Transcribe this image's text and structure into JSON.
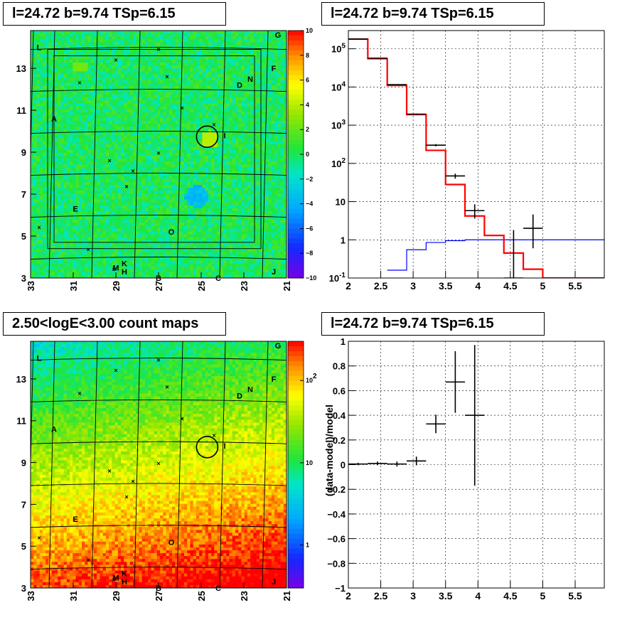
{
  "titles": {
    "top_left": "l=24.72 b=9.74 TSp=6.15",
    "top_right": "l=24.72 b=9.74 TSp=6.15",
    "bottom_left": "2.50<logE<3.00 count maps",
    "bottom_right": "l=24.72 b=9.74 TSp=6.15"
  },
  "colors": {
    "data": "#000000",
    "model_total": "#ff0000",
    "model_source": "#0000ff",
    "grid": "#000000"
  },
  "chart_data": [
    {
      "id": "residual_sky_map",
      "type": "heatmap",
      "xlabel": "",
      "ylabel": "",
      "x_ticks": [
        "33",
        "31",
        "29",
        "27",
        "25",
        "23",
        "21"
      ],
      "y_ticks": [
        "3",
        "5",
        "7",
        "9",
        "11",
        "13"
      ],
      "xlim": [
        33,
        21
      ],
      "ylim": [
        3,
        14.8
      ],
      "colorbar": {
        "min": -10,
        "max": 10,
        "ticks": [
          "10",
          "8",
          "6",
          "4",
          "2",
          "0",
          "−2",
          "−4",
          "−6",
          "−8",
          "−10"
        ]
      },
      "source_labels": [
        {
          "text": "G",
          "l": 21.4,
          "b": 14.6
        },
        {
          "text": "L",
          "l": 32.6,
          "b": 14.0
        },
        {
          "text": "F",
          "l": 21.6,
          "b": 13.0
        },
        {
          "text": "N",
          "l": 22.7,
          "b": 12.5
        },
        {
          "text": "D",
          "l": 23.2,
          "b": 12.2
        },
        {
          "text": "A",
          "l": 31.9,
          "b": 10.6
        },
        {
          "text": "I",
          "l": 23.9,
          "b": 9.8
        },
        {
          "text": "E",
          "l": 30.9,
          "b": 6.3
        },
        {
          "text": "O",
          "l": 26.4,
          "b": 5.2
        },
        {
          "text": "M",
          "l": 29.0,
          "b": 3.5
        },
        {
          "text": "K",
          "l": 28.6,
          "b": 3.7
        },
        {
          "text": "H",
          "l": 28.6,
          "b": 3.3
        },
        {
          "text": "B",
          "l": 27.0,
          "b": 3.0
        },
        {
          "text": "C",
          "l": 24.2,
          "b": 3.0
        },
        {
          "text": "J",
          "l": 21.6,
          "b": 3.3
        }
      ],
      "markers": [
        {
          "l": 29.0,
          "b": 13.4
        },
        {
          "l": 27.0,
          "b": 13.9
        },
        {
          "l": 26.6,
          "b": 12.6
        },
        {
          "l": 30.7,
          "b": 12.3
        },
        {
          "l": 25.9,
          "b": 11.1
        },
        {
          "l": 24.4,
          "b": 10.3
        },
        {
          "l": 29.3,
          "b": 8.6
        },
        {
          "l": 28.2,
          "b": 8.1
        },
        {
          "l": 27.0,
          "b": 8.95
        },
        {
          "l": 28.5,
          "b": 7.35
        },
        {
          "l": 30.3,
          "b": 4.35
        },
        {
          "l": 32.6,
          "b": 5.4
        },
        {
          "l": 29.1,
          "b": 3.4
        }
      ],
      "source_circle": {
        "l": 24.72,
        "b": 9.74,
        "radius_deg": 0.5
      }
    },
    {
      "id": "spectrum",
      "type": "line",
      "xlabel": "",
      "ylabel": "",
      "x_ticks": [
        "2",
        "2.5",
        "3",
        "3.5",
        "4",
        "4.5",
        "5",
        "5.5"
      ],
      "y_ticks": [
        "10^-1",
        "1",
        "10",
        "10^2",
        "10^3",
        "10^4",
        "10^5"
      ],
      "xlim": [
        2.0,
        5.95
      ],
      "ylim": [
        0.1,
        300000
      ],
      "log_y": true,
      "grid": true,
      "series": [
        {
          "step_edges": [
            2.0,
            2.3,
            2.6,
            2.9,
            3.2,
            3.5,
            3.8,
            4.1,
            4.4,
            4.7,
            5.0,
            5.3,
            5.95
          ],
          "step_values": [
            180000,
            55000,
            11000,
            1900,
            220,
            28,
            4.2,
            1.3,
            0.45,
            0.17,
            0.1,
            0.1
          ]
        },
        {
          "step_edges": [
            2.6,
            2.9,
            3.2,
            3.5,
            3.8,
            4.1,
            4.4,
            4.7,
            5.0,
            5.3,
            5.95
          ],
          "step_values": [
            0.16,
            0.55,
            0.85,
            0.95,
            1.0,
            1.0,
            1.0,
            1.0,
            1.0,
            1.0
          ]
        },
        {
          "points": [
            {
              "x": 2.15,
              "y": 180000,
              "xerr": 0.15,
              "ylo": 178000,
              "yhi": 182000
            },
            {
              "x": 2.45,
              "y": 57000,
              "xerr": 0.15,
              "ylo": 56000,
              "yhi": 58000
            },
            {
              "x": 2.75,
              "y": 11500,
              "xerr": 0.15,
              "ylo": 11200,
              "yhi": 11800
            },
            {
              "x": 3.05,
              "y": 1950,
              "xerr": 0.15,
              "ylo": 1880,
              "yhi": 2020
            },
            {
              "x": 3.35,
              "y": 300,
              "xerr": 0.15,
              "ylo": 280,
              "yhi": 320
            },
            {
              "x": 3.65,
              "y": 47,
              "xerr": 0.15,
              "ylo": 40,
              "yhi": 54
            },
            {
              "x": 3.95,
              "y": 5.8,
              "xerr": 0.15,
              "ylo": 3.6,
              "yhi": 8.5
            },
            {
              "x": 4.55,
              "y": 0.1,
              "xerr": 0.15,
              "ylo": 0.1,
              "yhi": 1.8
            },
            {
              "x": 4.85,
              "y": 2.0,
              "xerr": 0.15,
              "ylo": 0.6,
              "yhi": 4.6
            }
          ]
        }
      ]
    },
    {
      "id": "count_map",
      "type": "heatmap",
      "xlabel": "",
      "ylabel": "",
      "x_ticks": [
        "33",
        "31",
        "29",
        "27",
        "25",
        "23",
        "21"
      ],
      "y_ticks": [
        "3",
        "5",
        "7",
        "9",
        "11",
        "13"
      ],
      "xlim": [
        33,
        21
      ],
      "ylim": [
        3,
        14.8
      ],
      "log_z": true,
      "colorbar": {
        "min": 0.3,
        "max": 300,
        "ticks": [
          "10^2",
          "10",
          "1"
        ]
      },
      "source_labels": [
        {
          "text": "G",
          "l": 21.4,
          "b": 14.6
        },
        {
          "text": "L",
          "l": 32.6,
          "b": 14.0
        },
        {
          "text": "F",
          "l": 21.6,
          "b": 13.0
        },
        {
          "text": "N",
          "l": 22.7,
          "b": 12.5
        },
        {
          "text": "D",
          "l": 23.2,
          "b": 12.2
        },
        {
          "text": "A",
          "l": 31.9,
          "b": 10.6
        },
        {
          "text": "I",
          "l": 23.9,
          "b": 9.8
        },
        {
          "text": "E",
          "l": 30.9,
          "b": 6.3
        },
        {
          "text": "O",
          "l": 26.4,
          "b": 5.2
        },
        {
          "text": "M",
          "l": 29.0,
          "b": 3.5
        },
        {
          "text": "K",
          "l": 28.6,
          "b": 3.7
        },
        {
          "text": "H",
          "l": 28.6,
          "b": 3.3
        },
        {
          "text": "B",
          "l": 27.0,
          "b": 3.0
        },
        {
          "text": "C",
          "l": 24.2,
          "b": 3.0
        },
        {
          "text": "J",
          "l": 21.6,
          "b": 3.3
        }
      ],
      "markers": [
        {
          "l": 29.0,
          "b": 13.4
        },
        {
          "l": 27.0,
          "b": 13.9
        },
        {
          "l": 26.6,
          "b": 12.6
        },
        {
          "l": 30.7,
          "b": 12.3
        },
        {
          "l": 25.9,
          "b": 11.1
        },
        {
          "l": 24.4,
          "b": 10.3
        },
        {
          "l": 29.3,
          "b": 8.6
        },
        {
          "l": 28.2,
          "b": 8.1
        },
        {
          "l": 27.0,
          "b": 8.95
        },
        {
          "l": 28.5,
          "b": 7.35
        },
        {
          "l": 30.3,
          "b": 4.35
        },
        {
          "l": 32.6,
          "b": 5.4
        },
        {
          "l": 29.1,
          "b": 3.4
        }
      ],
      "source_circle": {
        "l": 24.72,
        "b": 9.74,
        "radius_deg": 0.5
      }
    },
    {
      "id": "residuals",
      "type": "scatter",
      "xlabel": "",
      "ylabel": "(data-model)/model",
      "x_ticks": [
        "2",
        "2.5",
        "3",
        "3.5",
        "4",
        "4.5",
        "5",
        "5.5"
      ],
      "y_ticks": [
        "−1",
        "−0.8",
        "−0.6",
        "−0.4",
        "−0.2",
        "0",
        "0.2",
        "0.4",
        "0.6",
        "0.8",
        "1"
      ],
      "xlim": [
        2.0,
        5.95
      ],
      "ylim": [
        -1,
        1
      ],
      "grid": true,
      "points": [
        {
          "x": 2.15,
          "y": 0.005,
          "xerr": 0.15,
          "yerr": 0.01
        },
        {
          "x": 2.45,
          "y": 0.01,
          "xerr": 0.15,
          "yerr": 0.015
        },
        {
          "x": 2.75,
          "y": 0.005,
          "xerr": 0.15,
          "yerr": 0.02
        },
        {
          "x": 3.05,
          "y": 0.03,
          "xerr": 0.15,
          "yerr": 0.035
        },
        {
          "x": 3.35,
          "y": 0.33,
          "xerr": 0.15,
          "yerr": 0.075
        },
        {
          "x": 3.65,
          "y": 0.67,
          "xerr": 0.15,
          "yerr": 0.25
        },
        {
          "x": 3.95,
          "y": 0.4,
          "xerr": 0.15,
          "yerr": 0.57
        }
      ]
    }
  ]
}
